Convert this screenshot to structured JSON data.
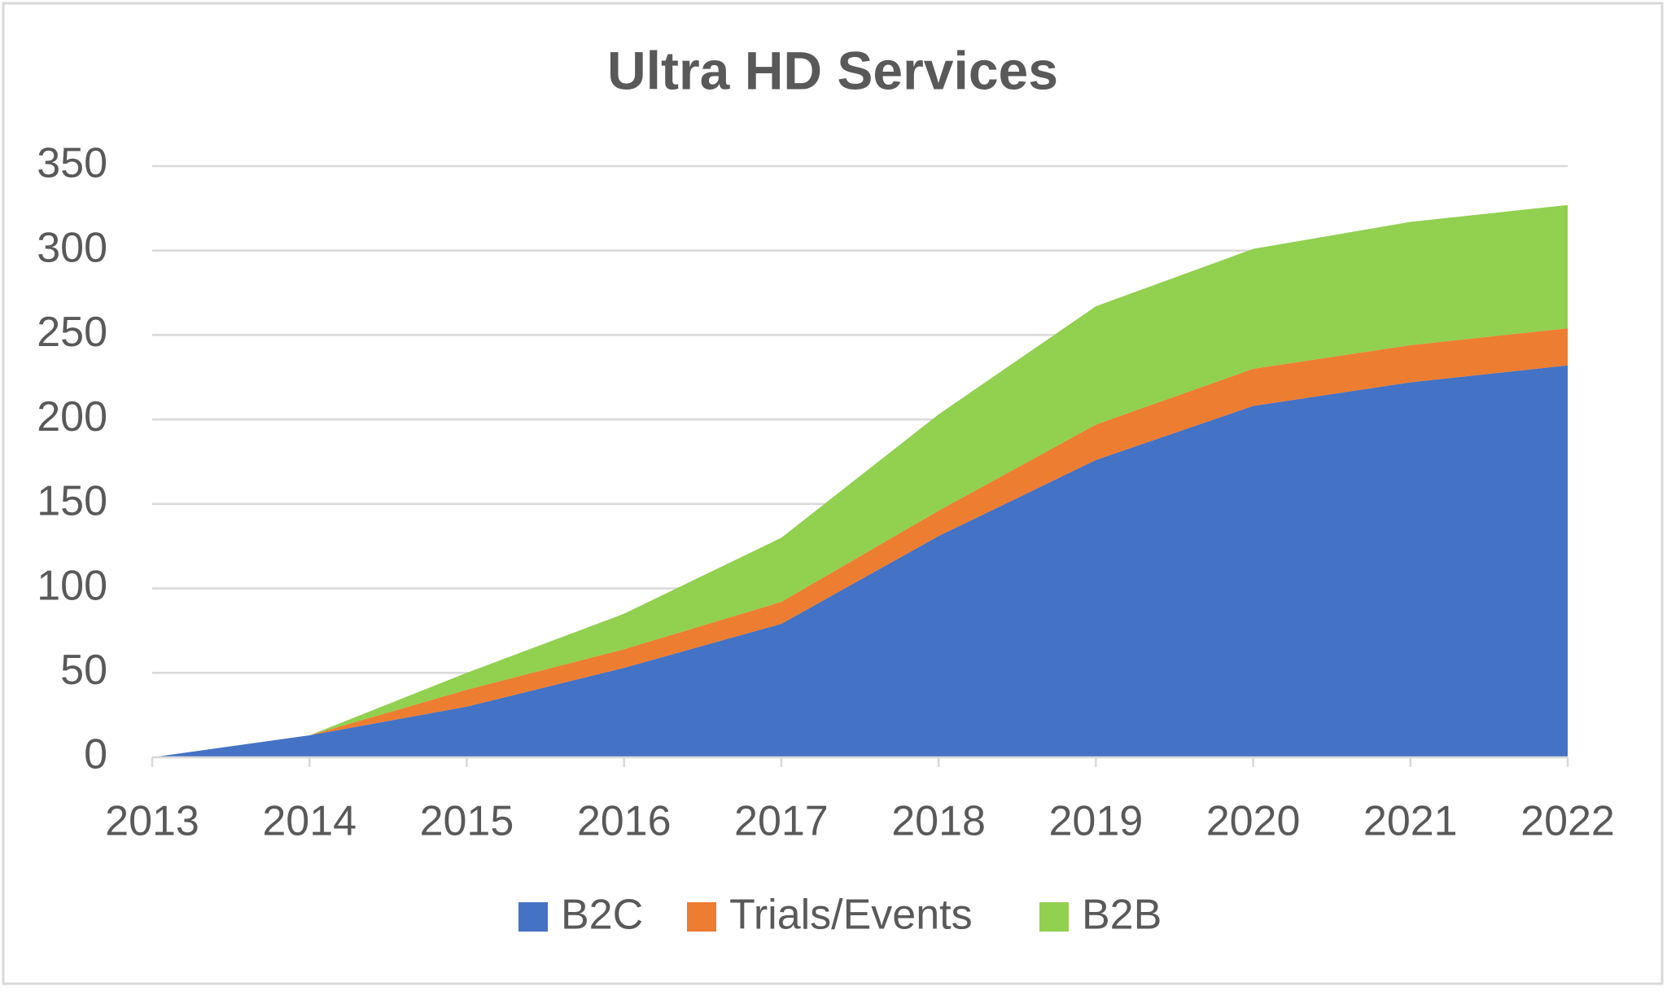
{
  "chart_data": {
    "type": "stacked_area",
    "title": "Ultra HD Services",
    "categories": [
      "2013",
      "2014",
      "2015",
      "2016",
      "2017",
      "2018",
      "2019",
      "2020",
      "2021",
      "2022"
    ],
    "series": [
      {
        "name": "B2C",
        "color": "#4472c4",
        "values": [
          0,
          13,
          30,
          53,
          79,
          131,
          176,
          208,
          222,
          232
        ]
      },
      {
        "name": "Trials/Events",
        "color": "#ed7d31",
        "values": [
          0,
          0,
          10,
          11,
          13,
          15,
          21,
          22,
          22,
          22
        ]
      },
      {
        "name": "B2B",
        "color": "#92d050",
        "values": [
          0,
          0,
          10,
          21,
          38,
          57,
          70,
          71,
          73,
          73
        ]
      }
    ],
    "ylim": [
      0,
      350
    ],
    "yticks": [
      0,
      50,
      100,
      150,
      200,
      250,
      300,
      350
    ],
    "grid": true,
    "legend": "bottom"
  }
}
